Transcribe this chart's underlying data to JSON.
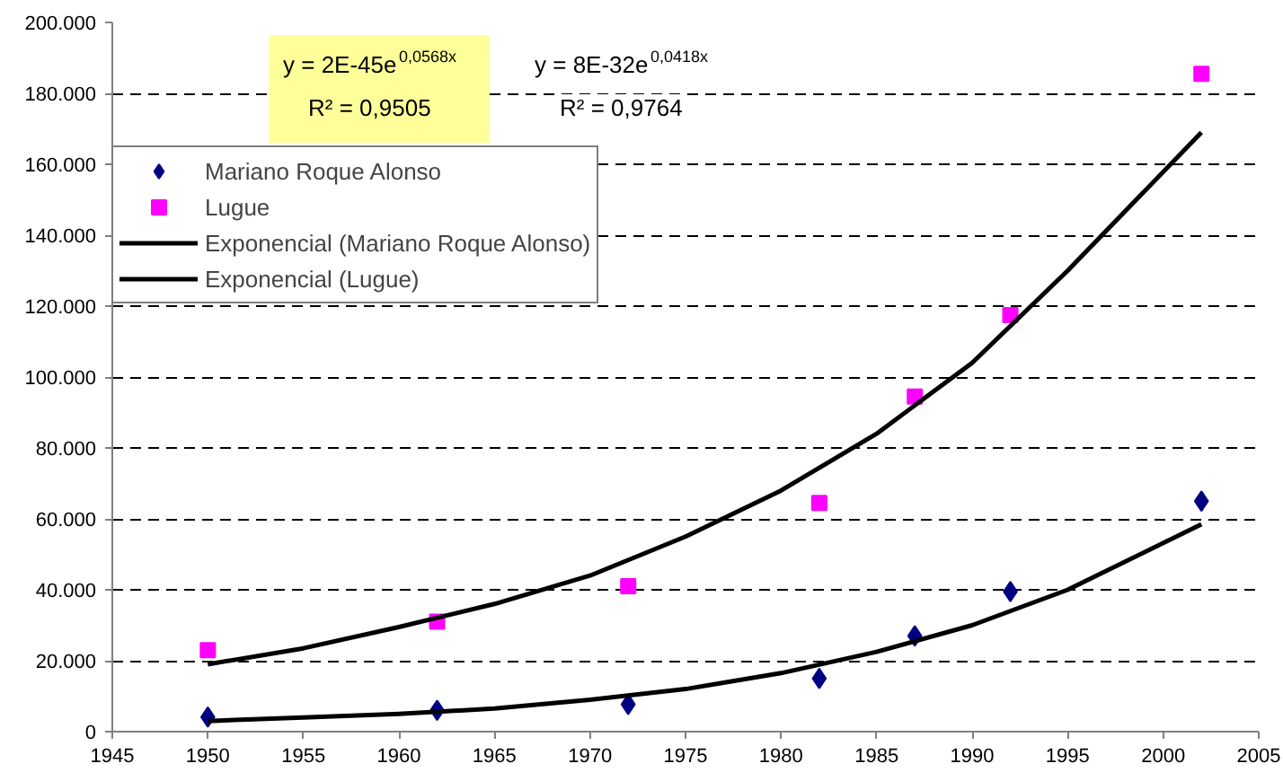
{
  "chart_data": {
    "type": "scatter",
    "grid": "y",
    "legend": "top left",
    "line_style": "solid",
    "annotations": [
      "y = 2E-45e$^{0,0568x}$",
      "R² = 0,9505",
      "y = 8E-32e$^{0,0418x}$",
      "R² = 0,9764"
    ],
    "xlim": [
      1945,
      2005
    ],
    "xticks": [
      1945,
      1950,
      1955,
      1960,
      1965,
      1970,
      1975,
      1980,
      1985,
      1990,
      1995,
      2000,
      2005
    ],
    "ylim": [
      0,
      200000
    ],
    "yticks": [
      {
        "value": 0,
        "label": "0"
      },
      {
        "value": 20000,
        "label": "20.000"
      },
      {
        "value": 40000,
        "label": "40.000"
      },
      {
        "value": 60000,
        "label": "60.000"
      },
      {
        "value": 80000,
        "label": "80.000"
      },
      {
        "value": 100000,
        "label": "100.000"
      },
      {
        "value": 120000,
        "label": "120.000"
      },
      {
        "value": 140000,
        "label": "140.000"
      },
      {
        "value": 160000,
        "label": "160.000"
      },
      {
        "value": 180000,
        "label": "180.000"
      },
      {
        "value": 200000,
        "label": "200.000"
      }
    ],
    "series": [
      {
        "name": "Mariano Roque Alonso",
        "marker": "diamond",
        "color": "#000080",
        "x": [
          1950,
          1962,
          1972,
          1982,
          1987,
          1992,
          2002
        ],
        "values": [
          4100,
          6000,
          7700,
          15000,
          27000,
          39500,
          65000
        ]
      },
      {
        "name": "Lugue",
        "marker": "square",
        "color": "#ff00ff",
        "x": [
          1950,
          1962,
          1972,
          1982,
          1987,
          1992,
          2002
        ],
        "values": [
          23000,
          31000,
          41000,
          64500,
          94500,
          117500,
          185500
        ]
      },
      {
        "name": "Exponencial (Mariano Roque Alonso)",
        "type": "line",
        "marker": "none",
        "color": "#000000",
        "x": [
          1950,
          1955,
          1960,
          1965,
          1970,
          1975,
          1980,
          1985,
          1990,
          1995,
          2002
        ],
        "values": [
          3000,
          4000,
          5000,
          6500,
          9000,
          12000,
          16500,
          22500,
          30000,
          40000,
          58500
        ]
      },
      {
        "name": "Exponencial (Lugue)",
        "type": "line",
        "marker": "none",
        "color": "#000000",
        "x": [
          1950,
          1955,
          1960,
          1965,
          1970,
          1975,
          1980,
          1985,
          1990,
          1995,
          2002
        ],
        "values": [
          19000,
          23500,
          29500,
          36000,
          44000,
          55000,
          68000,
          84000,
          104000,
          130000,
          169000
        ]
      }
    ]
  }
}
